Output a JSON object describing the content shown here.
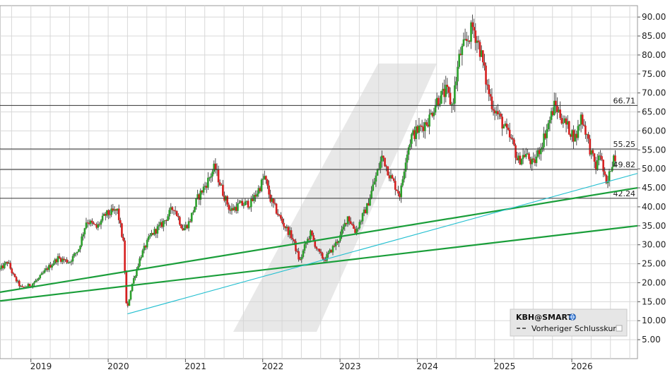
{
  "chart_data": {
    "type": "candlestick",
    "symbol": "KBH@SMART",
    "legend": {
      "title": "KBH@SMART",
      "previous_close_label": "Vorheriger Schlusskurs"
    },
    "grid": true,
    "y_axis": {
      "position": "right",
      "ylim": [
        0,
        93
      ],
      "ticks": [
        "5.00",
        "10.00",
        "15.00",
        "20.00",
        "25.00",
        "30.00",
        "35.00",
        "40.00",
        "45.00",
        "50.00",
        "55.00",
        "60.00",
        "65.00",
        "70.00",
        "75.00",
        "80.00",
        "85.00",
        "90.00"
      ]
    },
    "x_axis": {
      "xlim": [
        2018.6,
        2026.85
      ],
      "ticks": [
        "2019",
        "2020",
        "2021",
        "2022",
        "2023",
        "2024",
        "2025",
        "2026"
      ]
    },
    "horizontal_lines": [
      {
        "label": "66.71",
        "value": 66.71
      },
      {
        "label": "55.25",
        "value": 55.25
      },
      {
        "label": "49.82",
        "value": 49.82
      },
      {
        "label": "42.24",
        "value": 42.24
      }
    ],
    "trendlines": [
      {
        "color": "#1a9e3a",
        "from": [
          2018.6,
          17.5
        ],
        "to": [
          2026.85,
          45.0
        ]
      },
      {
        "color": "#1a9e3a",
        "from": [
          2018.6,
          15.2
        ],
        "to": [
          2026.85,
          35.0
        ]
      },
      {
        "color": "#22bfd0",
        "from": [
          2020.25,
          11.8
        ],
        "to": [
          2026.85,
          48.8
        ]
      }
    ],
    "colors": {
      "up": "#2ca02c",
      "down": "#d62020",
      "grid": "#d8d8d8",
      "hline": "#333333"
    },
    "price_path": [
      [
        2018.6,
        23.5
      ],
      [
        2018.7,
        25.5
      ],
      [
        2018.78,
        21.5
      ],
      [
        2018.88,
        18.5
      ],
      [
        2019.0,
        19.5
      ],
      [
        2019.1,
        21.0
      ],
      [
        2019.2,
        23.5
      ],
      [
        2019.35,
        26.5
      ],
      [
        2019.5,
        25.5
      ],
      [
        2019.62,
        29.0
      ],
      [
        2019.72,
        36.5
      ],
      [
        2019.85,
        34.5
      ],
      [
        2019.97,
        38.0
      ],
      [
        2020.12,
        39.0
      ],
      [
        2020.2,
        30.0
      ],
      [
        2020.24,
        12.0
      ],
      [
        2020.3,
        19.0
      ],
      [
        2020.42,
        27.0
      ],
      [
        2020.55,
        32.5
      ],
      [
        2020.7,
        35.5
      ],
      [
        2020.85,
        40.0
      ],
      [
        2020.97,
        34.0
      ],
      [
        2021.05,
        36.0
      ],
      [
        2021.15,
        42.0
      ],
      [
        2021.28,
        46.5
      ],
      [
        2021.38,
        50.5
      ],
      [
        2021.48,
        44.0
      ],
      [
        2021.58,
        39.0
      ],
      [
        2021.7,
        40.5
      ],
      [
        2021.85,
        41.0
      ],
      [
        2021.97,
        45.5
      ],
      [
        2022.02,
        48.0
      ],
      [
        2022.1,
        42.0
      ],
      [
        2022.25,
        36.0
      ],
      [
        2022.38,
        32.0
      ],
      [
        2022.48,
        25.5
      ],
      [
        2022.55,
        30.0
      ],
      [
        2022.62,
        33.0
      ],
      [
        2022.72,
        28.0
      ],
      [
        2022.8,
        26.0
      ],
      [
        2022.9,
        29.0
      ],
      [
        2023.0,
        32.0
      ],
      [
        2023.1,
        37.5
      ],
      [
        2023.2,
        33.5
      ],
      [
        2023.35,
        40.0
      ],
      [
        2023.45,
        47.0
      ],
      [
        2023.55,
        53.5
      ],
      [
        2023.65,
        48.0
      ],
      [
        2023.78,
        43.0
      ],
      [
        2023.85,
        53.0
      ],
      [
        2023.92,
        58.5
      ],
      [
        2024.05,
        61.0
      ],
      [
        2024.15,
        63.0
      ],
      [
        2024.25,
        68.0
      ],
      [
        2024.38,
        70.5
      ],
      [
        2024.45,
        66.5
      ],
      [
        2024.55,
        80.0
      ],
      [
        2024.65,
        84.0
      ],
      [
        2024.72,
        87.5
      ],
      [
        2024.82,
        81.0
      ],
      [
        2024.9,
        72.0
      ],
      [
        2024.97,
        67.0
      ],
      [
        2025.05,
        64.0
      ],
      [
        2025.15,
        60.0
      ],
      [
        2025.25,
        56.0
      ],
      [
        2025.3,
        52.0
      ],
      [
        2025.4,
        54.0
      ],
      [
        2025.5,
        51.0
      ],
      [
        2025.6,
        56.0
      ],
      [
        2025.7,
        62.0
      ],
      [
        2025.78,
        67.0
      ],
      [
        2025.88,
        63.0
      ],
      [
        2025.98,
        60.0
      ],
      [
        2026.05,
        58.0
      ],
      [
        2026.12,
        64.0
      ],
      [
        2026.18,
        60.0
      ],
      [
        2026.25,
        54.0
      ],
      [
        2026.32,
        50.0
      ],
      [
        2026.36,
        55.0
      ],
      [
        2026.42,
        48.0
      ],
      [
        2026.45,
        45.0
      ],
      [
        2026.5,
        50.0
      ],
      [
        2026.55,
        54.0
      ],
      [
        2026.58,
        52.5
      ]
    ]
  }
}
